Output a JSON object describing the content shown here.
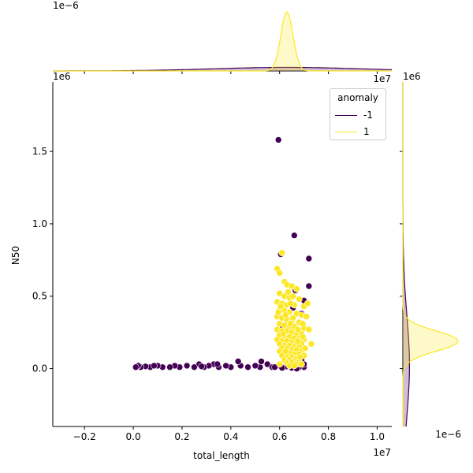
{
  "chart_data": {
    "type": "scatter",
    "variant": "jointplot with marginal KDE",
    "xlabel": "total_length",
    "ylabel": "N50",
    "x_offset_label": "1e7",
    "y_offset_label": "1e6",
    "marg_top_offset_label": "1e−6",
    "marg_right_offset_label": "1e−6",
    "xlim": [
      -0.33,
      1.06
    ],
    "ylim": [
      -0.4,
      1.98
    ],
    "x_ticks": [
      -0.2,
      0.0,
      0.2,
      0.4,
      0.6,
      0.8,
      1.0
    ],
    "y_ticks": [
      0.0,
      0.5,
      1.0,
      1.5
    ],
    "x_tick_labels": [
      "−0.2",
      "0.0",
      "0.2",
      "0.4",
      "0.6",
      "0.8",
      "1.0"
    ],
    "y_tick_labels": [
      "0.0",
      "0.5",
      "1.0",
      "1.5"
    ],
    "grid": false,
    "legend": {
      "title": "anomaly",
      "placement": "upper-right",
      "entries": [
        {
          "label": "-1",
          "color": "#440154"
        },
        {
          "label": "1",
          "color": "#fde725"
        }
      ]
    },
    "series": [
      {
        "name": "-1",
        "color": "#440154",
        "points": [
          [
            0.595,
            1.58
          ],
          [
            0.66,
            0.92
          ],
          [
            0.72,
            0.76
          ],
          [
            0.605,
            0.79
          ],
          [
            0.72,
            0.57
          ],
          [
            0.665,
            0.54
          ],
          [
            0.7,
            0.47
          ],
          [
            0.69,
            0.38
          ],
          [
            0.655,
            0.42
          ],
          [
            0.61,
            0.3
          ],
          [
            0.69,
            0.06
          ],
          [
            0.7,
            0.01
          ],
          [
            0.66,
            0.02
          ],
          [
            0.64,
            0.03
          ],
          [
            0.62,
            0.01
          ],
          [
            0.68,
            0.01
          ],
          [
            0.63,
            0.015
          ],
          [
            0.7,
            0.03
          ],
          [
            0.6,
            0.02
          ],
          [
            0.65,
            0.005
          ],
          [
            0.55,
            0.03
          ],
          [
            0.52,
            0.01
          ],
          [
            0.5,
            0.02
          ],
          [
            0.47,
            0.01
          ],
          [
            0.44,
            0.02
          ],
          [
            0.43,
            0.05
          ],
          [
            0.4,
            0.01
          ],
          [
            0.38,
            0.02
          ],
          [
            0.35,
            0.01
          ],
          [
            0.33,
            0.03
          ],
          [
            0.31,
            0.02
          ],
          [
            0.29,
            0.01
          ],
          [
            0.27,
            0.03
          ],
          [
            0.25,
            0.01
          ],
          [
            0.22,
            0.02
          ],
          [
            0.19,
            0.01
          ],
          [
            0.17,
            0.02
          ],
          [
            0.12,
            0.01
          ],
          [
            0.1,
            0.02
          ],
          [
            0.07,
            0.01
          ],
          [
            0.05,
            0.015
          ],
          [
            0.03,
            0.01
          ],
          [
            0.02,
            0.02
          ],
          [
            0.01,
            0.01
          ],
          [
            0.15,
            0.01
          ],
          [
            0.085,
            0.02
          ],
          [
            0.57,
            0.01
          ],
          [
            0.525,
            0.05
          ],
          [
            0.345,
            0.03
          ],
          [
            0.28,
            0.015
          ],
          [
            0.58,
            0.01
          ],
          [
            0.61,
            0.005
          ],
          [
            0.67,
            0.0
          ]
        ]
      },
      {
        "name": "1",
        "color": "#fde725",
        "points": [
          [
            0.61,
            0.8
          ],
          [
            0.59,
            0.69
          ],
          [
            0.6,
            0.66
          ],
          [
            0.62,
            0.6
          ],
          [
            0.63,
            0.58
          ],
          [
            0.65,
            0.57
          ],
          [
            0.67,
            0.55
          ],
          [
            0.6,
            0.52
          ],
          [
            0.62,
            0.5
          ],
          [
            0.64,
            0.49
          ],
          [
            0.68,
            0.48
          ],
          [
            0.59,
            0.46
          ],
          [
            0.61,
            0.45
          ],
          [
            0.63,
            0.44
          ],
          [
            0.66,
            0.44
          ],
          [
            0.7,
            0.43
          ],
          [
            0.6,
            0.41
          ],
          [
            0.62,
            0.4
          ],
          [
            0.64,
            0.39
          ],
          [
            0.67,
            0.38
          ],
          [
            0.69,
            0.37
          ],
          [
            0.59,
            0.36
          ],
          [
            0.61,
            0.35
          ],
          [
            0.63,
            0.34
          ],
          [
            0.65,
            0.33
          ],
          [
            0.68,
            0.32
          ],
          [
            0.6,
            0.31
          ],
          [
            0.62,
            0.3
          ],
          [
            0.64,
            0.29
          ],
          [
            0.66,
            0.29
          ],
          [
            0.7,
            0.28
          ],
          [
            0.59,
            0.27
          ],
          [
            0.61,
            0.26
          ],
          [
            0.63,
            0.26
          ],
          [
            0.65,
            0.25
          ],
          [
            0.67,
            0.24
          ],
          [
            0.69,
            0.24
          ],
          [
            0.6,
            0.23
          ],
          [
            0.62,
            0.22
          ],
          [
            0.64,
            0.22
          ],
          [
            0.66,
            0.21
          ],
          [
            0.68,
            0.21
          ],
          [
            0.7,
            0.2
          ],
          [
            0.59,
            0.2
          ],
          [
            0.61,
            0.19
          ],
          [
            0.63,
            0.19
          ],
          [
            0.65,
            0.18
          ],
          [
            0.67,
            0.18
          ],
          [
            0.69,
            0.17
          ],
          [
            0.6,
            0.17
          ],
          [
            0.62,
            0.16
          ],
          [
            0.64,
            0.16
          ],
          [
            0.66,
            0.15
          ],
          [
            0.68,
            0.15
          ],
          [
            0.61,
            0.14
          ],
          [
            0.63,
            0.14
          ],
          [
            0.65,
            0.13
          ],
          [
            0.67,
            0.13
          ],
          [
            0.69,
            0.12
          ],
          [
            0.6,
            0.12
          ],
          [
            0.62,
            0.11
          ],
          [
            0.64,
            0.11
          ],
          [
            0.66,
            0.1
          ],
          [
            0.68,
            0.1
          ],
          [
            0.7,
            0.09
          ],
          [
            0.61,
            0.09
          ],
          [
            0.63,
            0.08
          ],
          [
            0.65,
            0.08
          ],
          [
            0.67,
            0.07
          ],
          [
            0.62,
            0.06
          ],
          [
            0.64,
            0.06
          ],
          [
            0.66,
            0.05
          ],
          [
            0.68,
            0.05
          ],
          [
            0.63,
            0.04
          ],
          [
            0.65,
            0.04
          ],
          [
            0.67,
            0.03
          ],
          [
            0.69,
            0.03
          ],
          [
            0.64,
            0.02
          ],
          [
            0.66,
            0.02
          ],
          [
            0.6,
            0.03
          ],
          [
            0.73,
            0.17
          ],
          [
            0.72,
            0.27
          ],
          [
            0.71,
            0.36
          ],
          [
            0.715,
            0.45
          ],
          [
            0.655,
            0.5
          ],
          [
            0.635,
            0.53
          ],
          [
            0.605,
            0.43
          ],
          [
            0.625,
            0.37
          ],
          [
            0.645,
            0.31
          ],
          [
            0.675,
            0.27
          ],
          [
            0.695,
            0.22
          ],
          [
            0.705,
            0.14
          ],
          [
            0.685,
            0.08
          ],
          [
            0.655,
            0.35
          ],
          [
            0.615,
            0.24
          ],
          [
            0.675,
            0.19
          ],
          [
            0.645,
            0.45
          ],
          [
            0.595,
            0.39
          ],
          [
            0.695,
            0.31
          ],
          [
            0.625,
            0.12
          ]
        ]
      }
    ],
    "marginal_x": [
      {
        "name": "-1",
        "color": "#440154",
        "peak_x": 0.63,
        "peak_density": 0.06,
        "width": 0.3
      },
      {
        "name": "1",
        "color": "#fde725",
        "peak_x": 0.63,
        "peak_density": 1.0,
        "width": 0.025
      }
    ],
    "marginal_y": [
      {
        "name": "-1",
        "color": "#440154",
        "peak_y": 0.02,
        "peak_density": 0.12,
        "width": 0.35
      },
      {
        "name": "1",
        "color": "#fde725",
        "peak_y": 0.19,
        "peak_density": 1.0,
        "width": 0.07
      }
    ]
  }
}
